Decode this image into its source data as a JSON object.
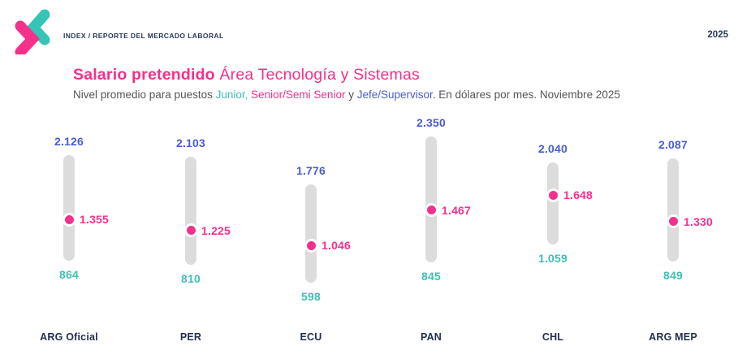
{
  "header": {
    "breadcrumb": "INDEX / REPORTE DEL MERCADO LABORAL",
    "year": "2025",
    "logo": {
      "name": "index-logo",
      "teal": "#35c4b5",
      "pink": "#f5318c"
    }
  },
  "title": {
    "bold": "Salario pretendido",
    "regular": "Área Tecnología y Sistemas"
  },
  "subtitle": {
    "prefix": "Nivel promedio para puestos ",
    "junior": "Junior,",
    "sep1": " ",
    "senior": "Senior/Semi Senior",
    "sep2": " y ",
    "jefe": "Jefe/Supervisor",
    "suffix": ". En dólares por mes. Noviembre 2025"
  },
  "colors": {
    "pink": "#f5308c",
    "teal": "#3fc0b5",
    "blue": "#4a5cd5",
    "navy": "#24304f",
    "bar_gray": "#dcdcdc",
    "text_gray": "#55555a"
  },
  "chart_data": {
    "type": "dumbbell",
    "title": "Salario pretendido Área Tecnología y Sistemas",
    "subtitle": "Nivel promedio para puestos Junior, Senior/Semi Senior y Jefe/Supervisor. En dólares por mes. Noviembre 2025",
    "unit": "dólares por mes",
    "period": "Noviembre 2025",
    "categories": [
      "ARG Oficial",
      "PER",
      "ECU",
      "PAN",
      "CHL",
      "ARG MEP"
    ],
    "series": [
      {
        "name": "Jefe/Supervisor",
        "role": "max",
        "color": "#4a5cd5",
        "values": [
          2126,
          2103,
          1776,
          2350,
          2040,
          2087
        ],
        "labels": [
          "2.126",
          "2.103",
          "1.776",
          "2.350",
          "2.040",
          "2.087"
        ]
      },
      {
        "name": "Senior/Semi Senior",
        "role": "mid",
        "color": "#f5308c",
        "values": [
          1355,
          1225,
          1046,
          1467,
          1648,
          1330
        ],
        "labels": [
          "1.355",
          "1.225",
          "1.046",
          "1.467",
          "1.648",
          "1.330"
        ]
      },
      {
        "name": "Junior",
        "role": "min",
        "color": "#3fc0b5",
        "values": [
          864,
          810,
          598,
          845,
          1059,
          849
        ],
        "labels": [
          "864",
          "810",
          "598",
          "845",
          "1.059",
          "849"
        ]
      }
    ],
    "bar_color": "#dcdcdc",
    "grid": false,
    "legend": false
  }
}
